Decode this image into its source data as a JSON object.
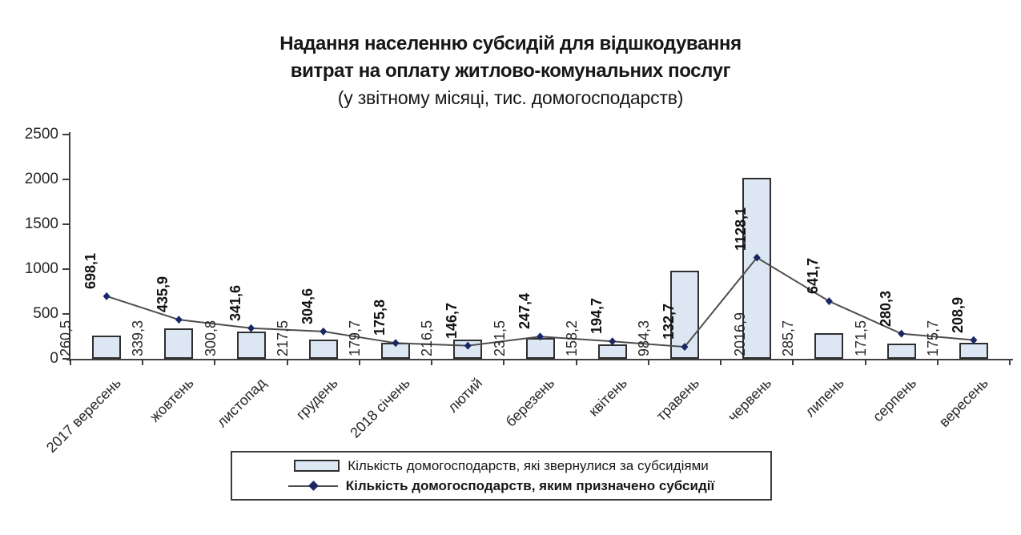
{
  "title": {
    "line1": "Надання населенню субсидій  для відшкодування",
    "line2": "витрат на оплату житлово-комунальних послуг",
    "line3": "(у звітному місяці, тис. домогосподарств)"
  },
  "chart_data": {
    "type": "combo-bar-line",
    "categories": [
      "2017 вересень",
      "жовтень",
      "листопад",
      "грудень",
      "2018 січень",
      "лютий",
      "березень",
      "квітень",
      "травень",
      "червень",
      "липень",
      "серпень",
      "вересень"
    ],
    "series": [
      {
        "name": "Кількість домогосподарств,  які звернулися за субсидіями",
        "type": "bar",
        "values": [
          260.5,
          339.3,
          300.8,
          217.5,
          179.7,
          216.5,
          231.5,
          158.2,
          984.3,
          2016.9,
          285.7,
          171.5,
          175.7
        ],
        "labels": [
          "260,5",
          "339,3",
          "300,8",
          "217,5",
          "179,7",
          "216,5",
          "231,5",
          "158,2",
          "984,3",
          "2016,9",
          "285,7",
          "171,5",
          "175,7"
        ],
        "fill": "#dce7f3",
        "border": "#2f2f2f"
      },
      {
        "name": "Кількість  домогосподарств, яким призначено субсидії",
        "type": "line",
        "values": [
          698.1,
          435.9,
          341.6,
          304.6,
          175.8,
          146.7,
          247.4,
          194.7,
          132.7,
          1128.1,
          641.7,
          280.3,
          208.9
        ],
        "labels": [
          "698,1",
          "435,9",
          "341,6",
          "304,6",
          "175,8",
          "146,7",
          "247,4",
          "194,7",
          "132,7",
          "1128,1",
          "641,7",
          "280,3",
          "208,9"
        ],
        "color": "#4d4d4d",
        "marker": "diamond",
        "marker_color": "#1a2766"
      }
    ],
    "ylim": [
      0,
      2500
    ],
    "yticks": [
      0,
      500,
      1000,
      1500,
      2000,
      2500
    ],
    "grid": false,
    "legend_position": "bottom"
  }
}
